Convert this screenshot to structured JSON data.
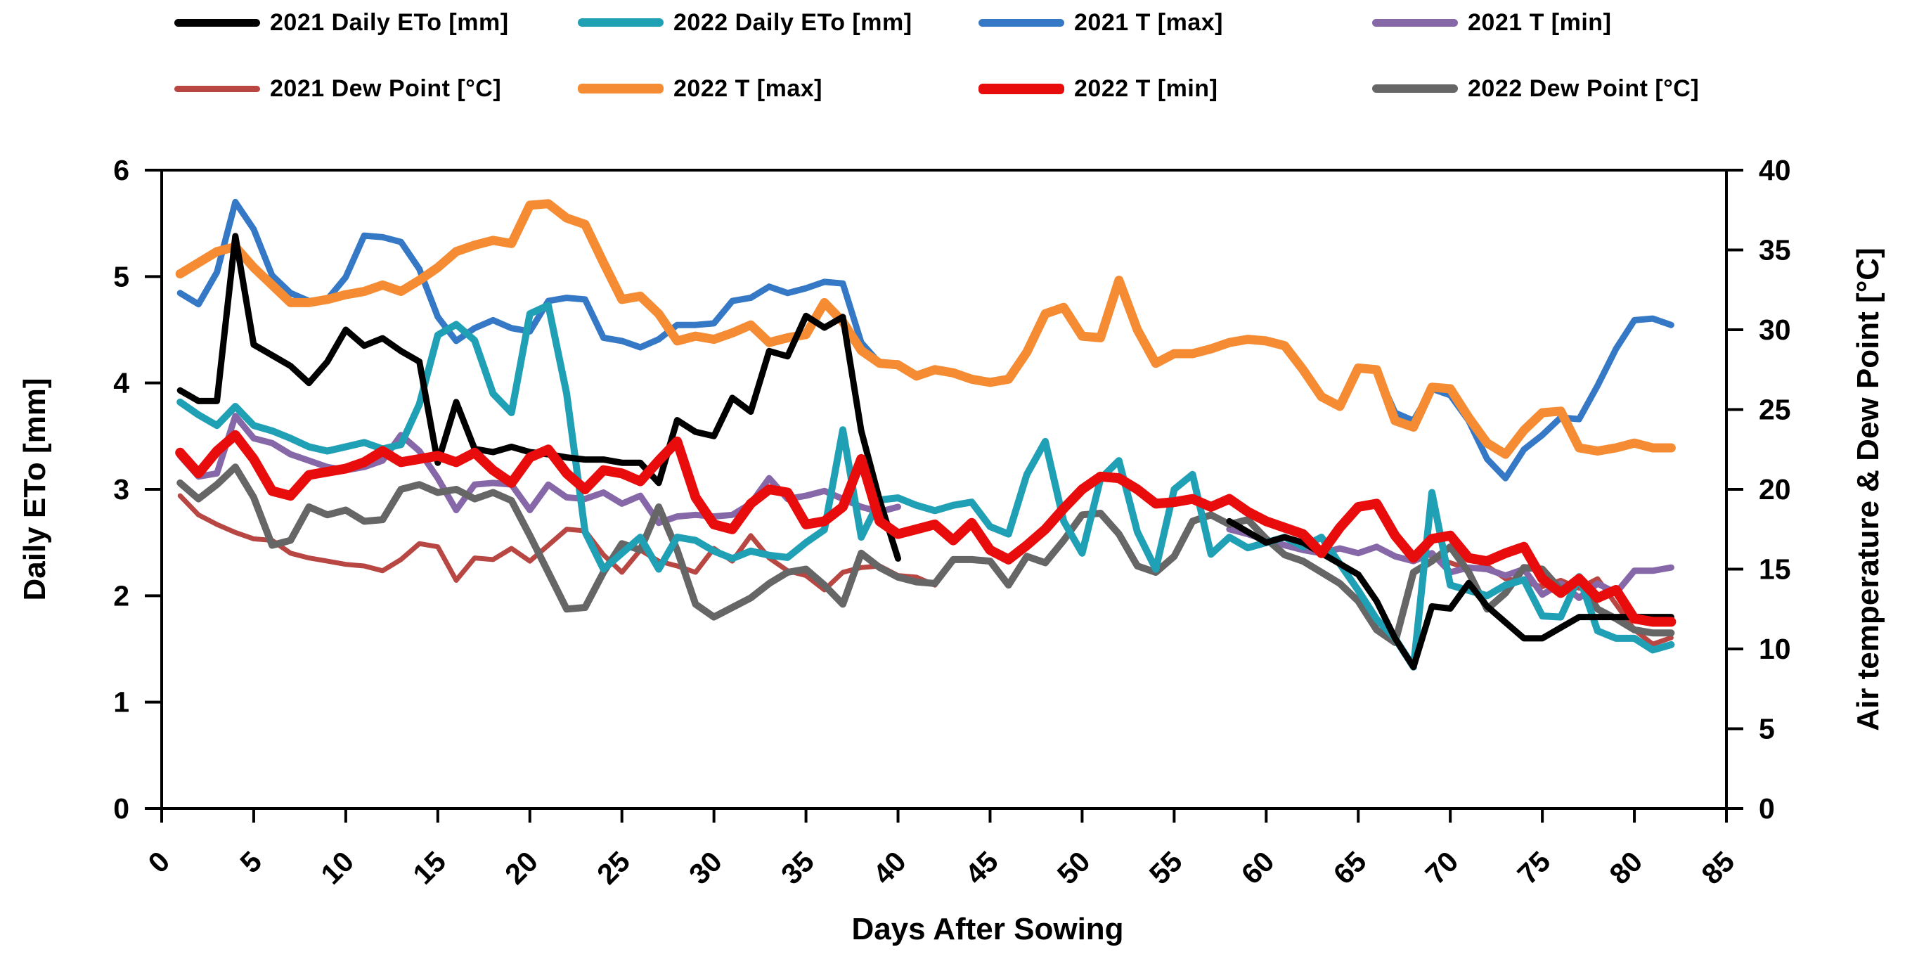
{
  "page": {
    "background": "#ffffff"
  },
  "legend": {
    "items": [
      {
        "label": "2021 Daily ETo  [mm]",
        "color": "#000000",
        "thickness": 11
      },
      {
        "label": "2022 Daily ETo  [mm]",
        "color": "#1FA0B5",
        "thickness": 12
      },
      {
        "label": "2021 T [max]",
        "color": "#3578C5",
        "thickness": 11
      },
      {
        "label": "2021 T [min]",
        "color": "#8668A9",
        "thickness": 11
      },
      {
        "label": "2021 Dew Point [°C]",
        "color": "#B84743",
        "thickness": 9
      },
      {
        "label": "2022 T [max]",
        "color": "#F58C33",
        "thickness": 14
      },
      {
        "label": "2022 T [min]",
        "color": "#E80C0C",
        "thickness": 15
      },
      {
        "label": "2022 Dew Point [°C]",
        "color": "#666666",
        "thickness": 12
      }
    ]
  },
  "chart_data": {
    "type": "line",
    "title": "",
    "xlabel": "Days After Sowing",
    "ylabel_left": "Daily ETo [mm]",
    "ylabel_right": "Air temperature & Dew Point [°C]",
    "grid": false,
    "legend_position": "top",
    "xlim": [
      0,
      85
    ],
    "x_ticks": [
      "0",
      "5",
      "10",
      "15",
      "20",
      "25",
      "30",
      "35",
      "40",
      "45",
      "50",
      "55",
      "60",
      "65",
      "70",
      "75",
      "80",
      "85"
    ],
    "ylim_left": [
      0,
      6
    ],
    "y_ticks_left": [
      "0",
      "1",
      "2",
      "3",
      "4",
      "5",
      "6"
    ],
    "ylim_right": [
      0,
      40
    ],
    "y_ticks_right": [
      "0",
      "5",
      "10",
      "15",
      "20",
      "25",
      "30",
      "35",
      "40"
    ],
    "x_start": 1,
    "x_step": 1,
    "note": "2021 series have a data gap in the middle of the season",
    "series": [
      {
        "name": "2021 Daily ETo  [mm]",
        "axis": "left",
        "color": "#000000",
        "line_width": 9,
        "values": [
          3.93,
          3.83,
          3.83,
          5.38,
          4.36,
          4.26,
          4.16,
          4.0,
          4.2,
          4.5,
          4.35,
          4.42,
          4.3,
          4.2,
          3.25,
          3.82,
          3.38,
          3.35,
          3.4,
          3.35,
          3.33,
          3.3,
          3.28,
          3.28,
          3.25,
          3.25,
          3.06,
          3.65,
          3.54,
          3.5,
          3.86,
          3.73,
          4.3,
          4.25,
          4.63,
          4.52,
          4.62,
          3.55,
          2.9,
          2.35,
          null,
          null,
          null,
          null,
          null,
          null,
          null,
          null,
          null,
          null,
          null,
          null,
          null,
          null,
          null,
          null,
          null,
          2.7,
          2.6,
          2.5,
          2.55,
          2.5,
          2.4,
          2.3,
          2.2,
          1.95,
          1.6,
          1.33,
          1.9,
          1.88,
          2.12,
          1.9,
          1.75,
          1.6,
          1.6,
          1.7,
          1.8,
          1.8,
          1.8,
          1.8,
          1.8,
          1.8
        ]
      },
      {
        "name": "2022 Daily ETo  [mm]",
        "axis": "left",
        "color": "#1FA0B5",
        "line_width": 10,
        "values": [
          3.82,
          3.7,
          3.6,
          3.78,
          3.6,
          3.55,
          3.48,
          3.4,
          3.36,
          3.4,
          3.44,
          3.38,
          3.42,
          3.8,
          4.45,
          4.55,
          4.4,
          3.9,
          3.72,
          4.65,
          4.73,
          3.9,
          2.6,
          2.25,
          2.4,
          2.55,
          2.25,
          2.55,
          2.52,
          2.42,
          2.35,
          2.42,
          2.38,
          2.36,
          2.5,
          2.62,
          3.56,
          2.55,
          2.9,
          2.92,
          2.85,
          2.8,
          2.85,
          2.88,
          2.65,
          2.58,
          3.14,
          3.45,
          2.7,
          2.4,
          3.1,
          3.27,
          2.6,
          2.25,
          3.0,
          3.14,
          2.39,
          2.55,
          2.45,
          2.5,
          2.55,
          2.46,
          2.55,
          2.3,
          2.05,
          1.78,
          1.6,
          1.33,
          2.97,
          2.1,
          2.05,
          2.0,
          2.1,
          2.15,
          1.81,
          1.8,
          2.18,
          1.67,
          1.6,
          1.6,
          1.49,
          1.54
        ]
      },
      {
        "name": "2021 T [max]",
        "axis": "right",
        "color": "#3578C5",
        "line_width": 9,
        "values": [
          32.3,
          31.6,
          33.6,
          38.0,
          36.3,
          33.4,
          32.3,
          31.8,
          31.9,
          33.3,
          35.9,
          35.8,
          35.5,
          33.8,
          30.8,
          29.3,
          30.1,
          30.6,
          30.1,
          29.9,
          31.8,
          32.0,
          31.9,
          29.5,
          29.3,
          28.9,
          29.4,
          30.3,
          30.3,
          30.4,
          31.8,
          32.0,
          32.7,
          32.3,
          32.6,
          33.0,
          32.9,
          29.2,
          27.9,
          27.9,
          null,
          null,
          null,
          null,
          null,
          null,
          null,
          null,
          null,
          null,
          null,
          null,
          null,
          null,
          null,
          null,
          null,
          null,
          null,
          null,
          null,
          null,
          null,
          null,
          null,
          27.4,
          24.8,
          24.3,
          26.3,
          25.9,
          24.3,
          21.9,
          20.7,
          22.5,
          23.4,
          24.5,
          24.4,
          26.5,
          28.8,
          30.6,
          30.7,
          30.3
        ]
      },
      {
        "name": "2021 T [min]",
        "axis": "right",
        "color": "#8668A9",
        "line_width": 9,
        "values": [
          22.1,
          20.8,
          21.0,
          24.6,
          23.2,
          22.9,
          22.2,
          21.8,
          21.4,
          21.2,
          21.4,
          21.8,
          23.4,
          22.4,
          20.7,
          18.7,
          20.3,
          20.4,
          20.3,
          18.7,
          20.3,
          19.5,
          19.4,
          19.8,
          19.1,
          19.6,
          17.9,
          18.3,
          18.4,
          18.3,
          18.4,
          19.1,
          20.7,
          19.4,
          19.6,
          19.9,
          19.4,
          18.9,
          18.6,
          18.9,
          null,
          null,
          null,
          null,
          null,
          null,
          null,
          null,
          null,
          null,
          null,
          null,
          null,
          null,
          null,
          null,
          null,
          17.5,
          17.2,
          16.8,
          16.5,
          16.2,
          16.0,
          16.3,
          16.0,
          16.4,
          15.8,
          15.5,
          16.0,
          14.8,
          15.1,
          15.0,
          14.6,
          15.0,
          13.4,
          14.1,
          13.2,
          14.1,
          13.5,
          14.9,
          14.9,
          15.1
        ]
      },
      {
        "name": "2021 Dew Point [°C]",
        "axis": "right",
        "color": "#B84743",
        "line_width": 7,
        "values": [
          19.6,
          18.4,
          17.8,
          17.3,
          16.9,
          16.8,
          16.0,
          15.7,
          15.5,
          15.3,
          15.2,
          14.9,
          15.6,
          16.6,
          16.4,
          14.3,
          15.7,
          15.6,
          16.3,
          15.5,
          16.5,
          17.5,
          17.4,
          15.9,
          14.8,
          16.2,
          15.5,
          15.2,
          14.8,
          16.3,
          15.5,
          17.1,
          15.7,
          14.9,
          14.6,
          13.7,
          14.8,
          15.1,
          15.2,
          14.6,
          14.5,
          14.0,
          null,
          null,
          null,
          null,
          null,
          null,
          null,
          null,
          null,
          null,
          null,
          null,
          null,
          null,
          null,
          null,
          null,
          null,
          null,
          null,
          null,
          null,
          null,
          null,
          null,
          null,
          15.7,
          15.4,
          15.0,
          15.2,
          14.4,
          14.2,
          13.9,
          14.3,
          13.8,
          14.4,
          12.8,
          11.2,
          10.3,
          10.7
        ]
      },
      {
        "name": "2022 T [max]",
        "axis": "right",
        "color": "#F58C33",
        "line_width": 13,
        "values": [
          33.5,
          34.2,
          34.9,
          35.2,
          33.9,
          32.8,
          31.7,
          31.7,
          31.9,
          32.2,
          32.4,
          32.8,
          32.4,
          33.1,
          33.9,
          34.9,
          35.3,
          35.6,
          35.4,
          37.8,
          37.9,
          37.0,
          36.6,
          34.2,
          31.9,
          32.1,
          31.0,
          29.3,
          29.6,
          29.4,
          29.8,
          30.3,
          29.2,
          29.5,
          29.7,
          31.7,
          30.5,
          28.7,
          27.9,
          27.8,
          27.1,
          27.5,
          27.3,
          26.9,
          26.7,
          26.9,
          28.6,
          31.0,
          31.4,
          29.6,
          29.5,
          33.1,
          30.0,
          27.9,
          28.5,
          28.5,
          28.8,
          29.2,
          29.4,
          29.3,
          29.0,
          27.5,
          25.8,
          25.2,
          27.6,
          27.5,
          24.3,
          23.9,
          26.4,
          26.3,
          24.5,
          22.9,
          22.2,
          23.7,
          24.8,
          24.9,
          22.6,
          22.4,
          22.6,
          22.9,
          22.6,
          22.6
        ]
      },
      {
        "name": "2022 T [min]",
        "axis": "right",
        "color": "#E80C0C",
        "line_width": 14,
        "values": [
          22.3,
          21.0,
          22.4,
          23.4,
          21.9,
          19.9,
          19.6,
          20.9,
          21.1,
          21.3,
          21.7,
          22.4,
          21.7,
          21.9,
          22.1,
          21.7,
          22.3,
          21.2,
          20.4,
          22.0,
          22.5,
          21.0,
          20.0,
          21.2,
          21.0,
          20.5,
          21.8,
          23.0,
          19.5,
          17.8,
          17.5,
          19.1,
          20.0,
          19.8,
          17.8,
          18.0,
          18.9,
          21.9,
          18.0,
          17.2,
          17.5,
          17.8,
          16.8,
          17.9,
          16.2,
          15.6,
          16.5,
          17.5,
          18.8,
          20.0,
          20.8,
          20.7,
          20.0,
          19.1,
          19.2,
          19.4,
          18.9,
          19.4,
          18.6,
          18.0,
          17.6,
          17.2,
          16.0,
          17.6,
          18.9,
          19.1,
          17.1,
          15.7,
          16.9,
          17.1,
          15.7,
          15.5,
          16.0,
          16.4,
          14.4,
          13.5,
          14.4,
          13.2,
          13.7,
          11.9,
          11.7,
          11.7
        ]
      },
      {
        "name": "2022 Dew Point [°C]",
        "axis": "right",
        "color": "#666666",
        "line_width": 10,
        "values": [
          20.4,
          19.4,
          20.3,
          21.4,
          19.5,
          16.5,
          16.8,
          18.9,
          18.4,
          18.7,
          18.0,
          18.1,
          20.0,
          20.3,
          19.8,
          20.0,
          19.4,
          19.8,
          19.3,
          17.1,
          14.8,
          12.5,
          12.6,
          14.8,
          16.6,
          16.2,
          18.9,
          16.2,
          12.8,
          12.0,
          12.6,
          13.2,
          14.1,
          14.8,
          15.0,
          14.0,
          12.8,
          16.0,
          15.1,
          14.5,
          14.2,
          14.1,
          15.6,
          15.6,
          15.5,
          14.0,
          15.8,
          15.4,
          16.8,
          18.4,
          18.5,
          17.2,
          15.2,
          14.8,
          15.8,
          18.0,
          18.4,
          17.8,
          18.1,
          16.9,
          15.9,
          15.5,
          14.8,
          14.1,
          13.0,
          11.2,
          10.4,
          14.8,
          15.5,
          16.4,
          14.8,
          12.5,
          13.5,
          15.1,
          15.0,
          13.7,
          14.3,
          12.5,
          11.9,
          11.2,
          11.0,
          11.0
        ]
      }
    ]
  }
}
